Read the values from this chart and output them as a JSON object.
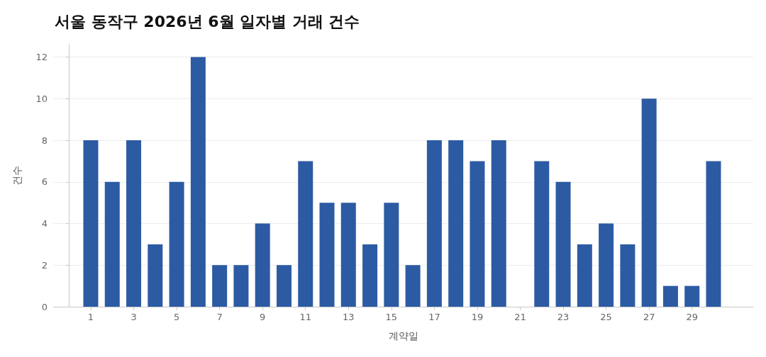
{
  "chart_data": {
    "type": "bar",
    "title": "서울 동작구 2026년 6월 일자별 거래 건수",
    "xlabel": "계약일",
    "ylabel": "건수",
    "x": [
      1,
      2,
      3,
      4,
      5,
      6,
      7,
      8,
      9,
      10,
      11,
      12,
      13,
      14,
      15,
      16,
      17,
      18,
      19,
      20,
      21,
      22,
      23,
      24,
      25,
      26,
      27,
      28,
      29,
      30
    ],
    "values": [
      8,
      6,
      8,
      3,
      6,
      12,
      2,
      2,
      4,
      2,
      7,
      5,
      5,
      3,
      5,
      2,
      8,
      8,
      7,
      8,
      0,
      7,
      6,
      3,
      4,
      3,
      10,
      1,
      1,
      7
    ],
    "color": "#2c5ba3",
    "xlim": [
      -0.75,
      31.85
    ],
    "xticks": [
      1,
      3,
      5,
      7,
      9,
      11,
      13,
      15,
      17,
      19,
      21,
      23,
      25,
      27,
      29
    ],
    "ylim": [
      0,
      12.6
    ],
    "yticks": [
      0,
      2,
      4,
      6,
      8,
      10,
      12
    ],
    "grid": "y"
  }
}
